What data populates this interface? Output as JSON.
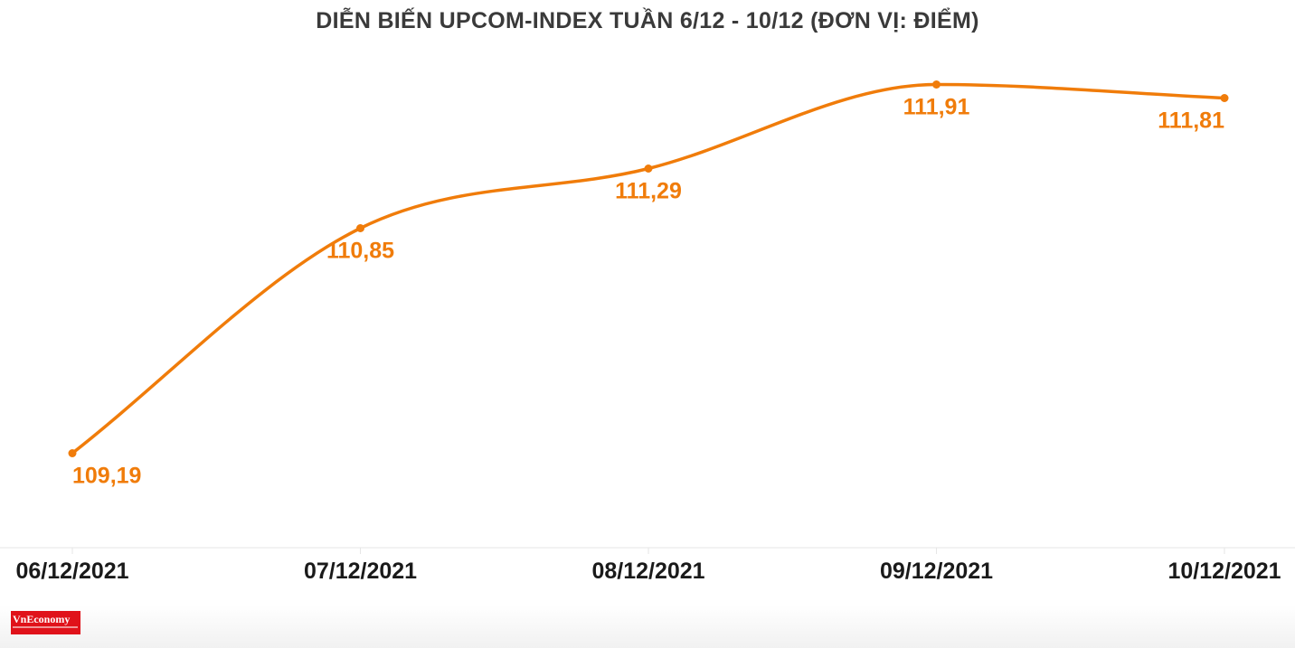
{
  "chart_data": {
    "type": "line",
    "title": "DIỄN BIẾN UPCOM-INDEX TUẦN 6/12 - 10/12 (ĐƠN VỊ: ĐIỂM)",
    "xlabel": "",
    "ylabel": "",
    "categories": [
      "06/12/2021",
      "07/12/2021",
      "08/12/2021",
      "09/12/2021",
      "10/12/2021"
    ],
    "values": [
      109.19,
      110.85,
      111.29,
      111.91,
      111.81
    ],
    "data_labels": [
      "109,19",
      "110,85",
      "111,29",
      "111,91",
      "111,81"
    ],
    "ylim": [
      108.8,
      112.0
    ],
    "grid": false,
    "smooth": true,
    "colors": {
      "line": "#f07c0a",
      "label": "#f07c0a",
      "title": "#3a3a3a",
      "tick": "#1a1a1a",
      "axis": "#e6e6e6"
    }
  },
  "brand": {
    "name": "VnEconomy",
    "logo_color": "#e0121a"
  }
}
